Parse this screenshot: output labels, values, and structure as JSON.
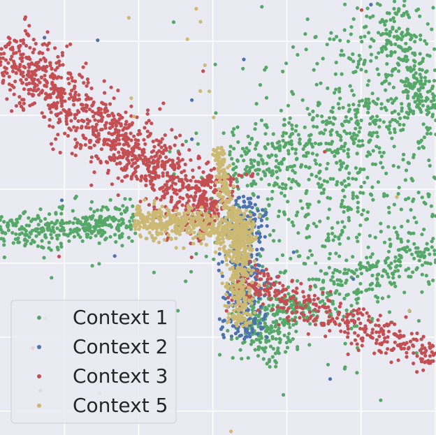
{
  "chart_data": {
    "type": "scatter",
    "title": "",
    "xlabel": "",
    "ylabel": "",
    "xlim": [
      0,
      10
    ],
    "ylim": [
      0,
      10
    ],
    "grid": true,
    "tick_labels_shown": false,
    "background_color": "#EAEAF2",
    "grid_color": "#FFFFFF",
    "legend": {
      "placement": "lower-left",
      "entries": [
        "Context 1",
        "Context 2",
        "Context 3",
        "Context 5"
      ]
    },
    "series": [
      {
        "name": "Context 1",
        "color": "#55A868",
        "structures": [
          {
            "kind": "band",
            "from": [
              0.0,
              4.7
            ],
            "to": [
              3.1,
              4.9
            ],
            "width": 0.45,
            "n": 320
          },
          {
            "kind": "band",
            "from": [
              5.3,
              6.1
            ],
            "to": [
              10.0,
              7.7
            ],
            "width": 0.9,
            "n": 360
          },
          {
            "kind": "band",
            "from": [
              9.0,
              9.8
            ],
            "to": [
              9.8,
              7.4
            ],
            "width": 0.55,
            "n": 170
          },
          {
            "kind": "band",
            "from": [
              5.6,
              2.4
            ],
            "to": [
              10.0,
              4.3
            ],
            "width": 0.55,
            "n": 300
          },
          {
            "kind": "cloud",
            "center": [
              7.8,
              5.3
            ],
            "spread": [
              1.6,
              1.4
            ],
            "n": 520
          },
          {
            "kind": "cloud",
            "center": [
              8.6,
              8.7
            ],
            "spread": [
              0.9,
              0.8
            ],
            "n": 160
          },
          {
            "kind": "cloud",
            "center": [
              6.1,
              2.5
            ],
            "spread": [
              0.4,
              0.5
            ],
            "n": 140
          }
        ]
      },
      {
        "name": "Context 2",
        "color": "#4C72B0",
        "structures": [
          {
            "kind": "band",
            "from": [
              5.6,
              5.5
            ],
            "to": [
              5.6,
              2.2
            ],
            "width": 0.55,
            "n": 320
          }
        ],
        "outliers": [
          [
            4.4,
            7.7
          ],
          [
            4.4,
            6.8
          ]
        ]
      },
      {
        "name": "Context 3",
        "color": "#C44E52",
        "structures": [
          {
            "kind": "band",
            "from": [
              0.0,
              8.9
            ],
            "to": [
              5.0,
              5.0
            ],
            "width": 0.8,
            "n": 1100
          },
          {
            "kind": "band",
            "from": [
              5.4,
              3.6
            ],
            "to": [
              10.0,
              1.8
            ],
            "width": 0.45,
            "n": 380
          },
          {
            "kind": "band",
            "from": [
              4.6,
              5.8
            ],
            "to": [
              5.8,
              6.0
            ],
            "width": 0.08,
            "n": 40
          }
        ]
      },
      {
        "name": "Context 5",
        "color": "#CCB974",
        "structures": [
          {
            "kind": "band",
            "from": [
              3.1,
              5.0
            ],
            "to": [
              5.8,
              4.6
            ],
            "width": 0.35,
            "n": 520
          },
          {
            "kind": "band",
            "from": [
              5.5,
              5.2
            ],
            "to": [
              5.5,
              2.5
            ],
            "width": 0.3,
            "n": 380
          },
          {
            "kind": "band",
            "from": [
              5.0,
              6.6
            ],
            "to": [
              5.3,
              5.0
            ],
            "width": 0.15,
            "n": 140
          }
        ],
        "outliers": [
          [
            4.5,
            9.8
          ],
          [
            4.6,
            9.5
          ],
          [
            4.3,
            9.1
          ],
          [
            4.7,
            8.5
          ],
          [
            4.8,
            7.9
          ],
          [
            4.9,
            7.3
          ]
        ]
      }
    ]
  }
}
